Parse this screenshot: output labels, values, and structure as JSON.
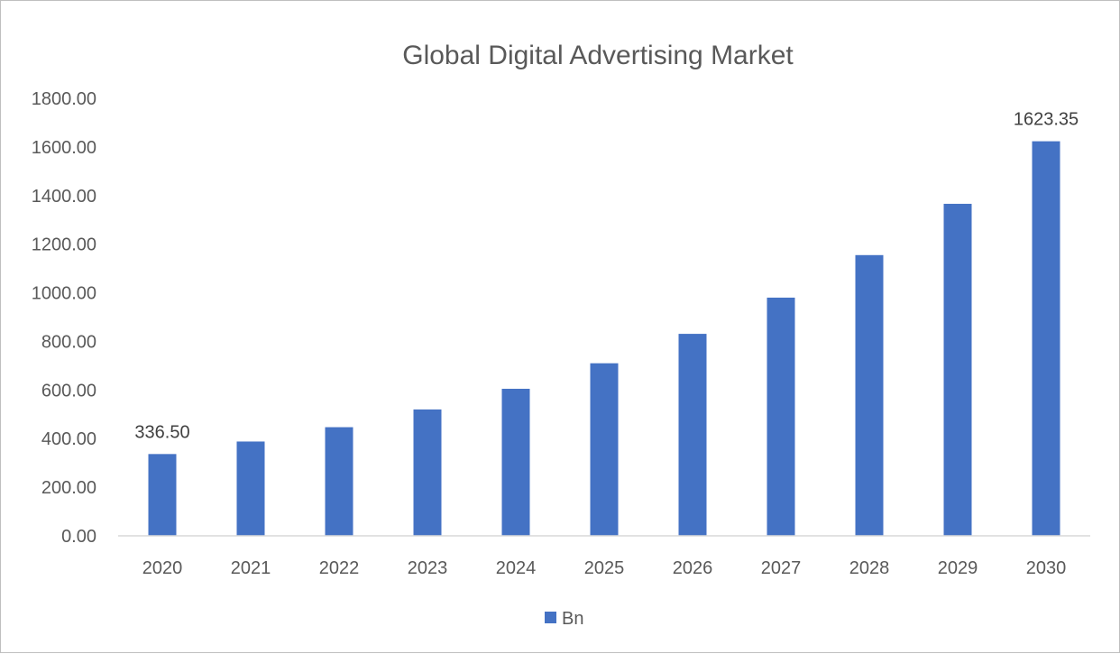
{
  "chart_data": {
    "type": "bar",
    "title": "Global Digital Advertising Market",
    "xlabel": "",
    "ylabel": "",
    "categories": [
      "2020",
      "2021",
      "2022",
      "2023",
      "2024",
      "2025",
      "2026",
      "2027",
      "2028",
      "2029",
      "2030"
    ],
    "series": [
      {
        "name": "Bn",
        "color": "#4472c4",
        "values": [
          336.5,
          388,
          447,
          520,
          605,
          710,
          831,
          980,
          1155,
          1366,
          1623.35
        ]
      }
    ],
    "data_labels": [
      {
        "category": "2020",
        "text": "336.50"
      },
      {
        "category": "2030",
        "text": "1623.35"
      }
    ],
    "ylim": [
      0,
      1800
    ],
    "yticks": [
      "0.00",
      "200.00",
      "400.00",
      "600.00",
      "800.00",
      "1000.00",
      "1200.00",
      "1400.00",
      "1600.00",
      "1800.00"
    ],
    "grid": false,
    "legend": "bottom"
  }
}
